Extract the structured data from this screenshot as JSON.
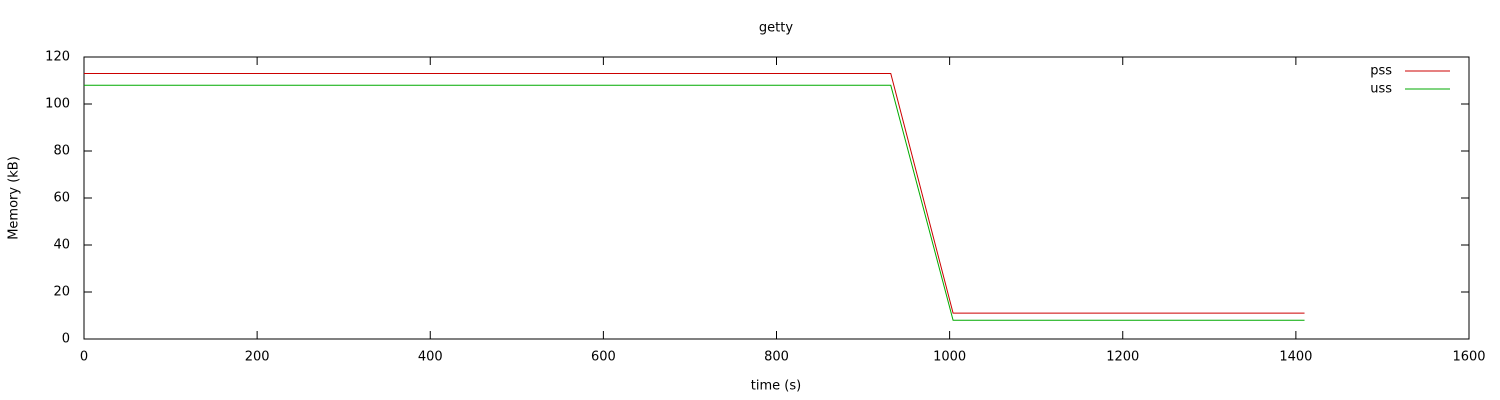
{
  "chart_data": {
    "type": "line",
    "title": "getty",
    "x_label": "time (s)",
    "y_label": "Memory (kB)",
    "x": [
      0,
      932,
      1004,
      1410
    ],
    "series": [
      {
        "name": "pss",
        "color": "#cc0000",
        "values": [
          113,
          113,
          11,
          11
        ]
      },
      {
        "name": "uss",
        "color": "#00aa00",
        "values": [
          108,
          108,
          8,
          8
        ]
      }
    ],
    "xlim": [
      0,
      1600
    ],
    "xticks": [
      0,
      200,
      400,
      600,
      800,
      1000,
      1200,
      1400,
      1600
    ],
    "ylim": [
      0,
      120
    ],
    "yticks": [
      0,
      20,
      40,
      60,
      80,
      100,
      120
    ],
    "grid": false,
    "legend": "top-right"
  }
}
